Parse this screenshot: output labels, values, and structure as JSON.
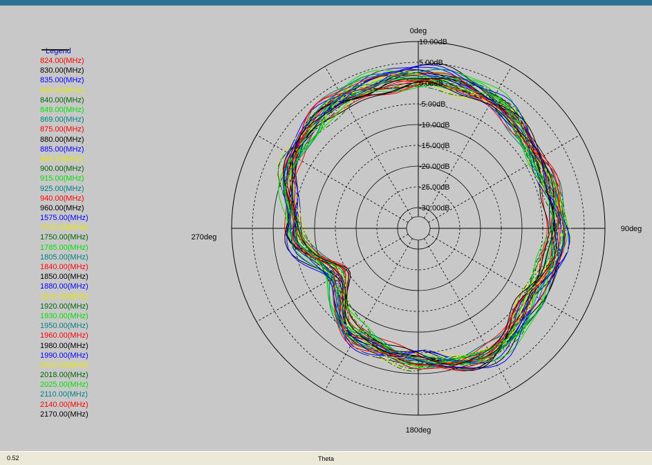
{
  "status_bar": {
    "left_value": "0.52",
    "center_label": "Theta"
  },
  "colors": {
    "background": "#c8c8c8",
    "title_bar": "#2f7394",
    "legend_title": "#0000d0"
  },
  "chart_data": {
    "type": "polar_line",
    "legend_title": "Legend",
    "angle_labels": [
      {
        "deg": 0,
        "label": "0deg"
      },
      {
        "deg": 90,
        "label": "90deg"
      },
      {
        "deg": 180,
        "label": "180deg"
      },
      {
        "deg": 270,
        "label": "270deg"
      }
    ],
    "radial_range_db": [
      -35,
      10
    ],
    "radial_ticks": [
      {
        "db": 10,
        "label": "10.00dB"
      },
      {
        "db": 5,
        "label": "5.00dB"
      },
      {
        "db": 0,
        "label": "0.00dB"
      },
      {
        "db": -5,
        "label": "-5.00dB"
      },
      {
        "db": -10,
        "label": "-10.00dB"
      },
      {
        "db": -15,
        "label": "-15.00dB"
      },
      {
        "db": -20,
        "label": "-20.00dB"
      },
      {
        "db": -25,
        "label": "-25.00dB"
      },
      {
        "db": -30,
        "label": "-30.00dB"
      }
    ],
    "series": [
      {
        "name": "824.00(MHz)",
        "color": "#ff0000",
        "dash": "solid"
      },
      {
        "name": "830.00(MHz)",
        "color": "#000000",
        "dash": "solid"
      },
      {
        "name": "835.00(MHz)",
        "color": "#0000ff",
        "dash": "solid"
      },
      {
        "name": "836.00(MHz)",
        "color": "#e6e600",
        "dash": "dashed"
      },
      {
        "name": "840.00(MHz)",
        "color": "#006400",
        "dash": "dashdot"
      },
      {
        "name": "849.00(MHz)",
        "color": "#00e000",
        "dash": "solid"
      },
      {
        "name": "869.00(MHz)",
        "color": "#008080",
        "dash": "solid"
      },
      {
        "name": "875.00(MHz)",
        "color": "#ff0000",
        "dash": "solid"
      },
      {
        "name": "880.00(MHz)",
        "color": "#000000",
        "dash": "solid"
      },
      {
        "name": "885.00(MHz)",
        "color": "#0000ff",
        "dash": "solid"
      },
      {
        "name": "894.00(MHz)",
        "color": "#e6e600",
        "dash": "dashed"
      },
      {
        "name": "900.00(MHz)",
        "color": "#006400",
        "dash": "dashdot"
      },
      {
        "name": "915.00(MHz)",
        "color": "#00e000",
        "dash": "solid"
      },
      {
        "name": "925.00(MHz)",
        "color": "#008080",
        "dash": "solid"
      },
      {
        "name": "940.00(MHz)",
        "color": "#ff0000",
        "dash": "solid"
      },
      {
        "name": "960.00(MHz)",
        "color": "#000000",
        "dash": "solid"
      },
      {
        "name": "1575.00(MHz)",
        "color": "#0000ff",
        "dash": "solid"
      },
      {
        "name": "1710.00(MHz)",
        "color": "#e6e600",
        "dash": "dashed"
      },
      {
        "name": "1750.00(MHz)",
        "color": "#006400",
        "dash": "dashdot"
      },
      {
        "name": "1785.00(MHz)",
        "color": "#00e000",
        "dash": "solid"
      },
      {
        "name": "1805.00(MHz)",
        "color": "#008080",
        "dash": "solid"
      },
      {
        "name": "1840.00(MHz)",
        "color": "#ff0000",
        "dash": "solid"
      },
      {
        "name": "1850.00(MHz)",
        "color": "#000000",
        "dash": "solid"
      },
      {
        "name": "1880.00(MHz)",
        "color": "#0000ff",
        "dash": "solid"
      },
      {
        "name": "1910.00(MHz)",
        "color": "#e6e600",
        "dash": "dashed"
      },
      {
        "name": "1920.00(MHz)",
        "color": "#006400",
        "dash": "dashdot"
      },
      {
        "name": "1930.00(MHz)",
        "color": "#00e000",
        "dash": "solid"
      },
      {
        "name": "1950.00(MHz)",
        "color": "#008080",
        "dash": "solid"
      },
      {
        "name": "1960.00(MHz)",
        "color": "#ff0000",
        "dash": "solid"
      },
      {
        "name": "1980.00(MHz)",
        "color": "#000000",
        "dash": "solid"
      },
      {
        "name": "1990.00(MHz)",
        "color": "#0000ff",
        "dash": "solid"
      },
      {
        "name": "2010.00(MHz)",
        "color": "#e6e600",
        "dash": "dashed"
      },
      {
        "name": "2018.00(MHz)",
        "color": "#006400",
        "dash": "dashdot"
      },
      {
        "name": "2025.00(MHz)",
        "color": "#00e000",
        "dash": "solid"
      },
      {
        "name": "2110.00(MHz)",
        "color": "#008080",
        "dash": "solid"
      },
      {
        "name": "2140.00(MHz)",
        "color": "#ff0000",
        "dash": "solid"
      },
      {
        "name": "2170.00(MHz)",
        "color": "#000000",
        "dash": "solid"
      }
    ],
    "base_pattern_db": [
      {
        "theta": 0,
        "db": 1.5
      },
      {
        "theta": 30,
        "db": 1
      },
      {
        "theta": 60,
        "db": -2
      },
      {
        "theta": 90,
        "db": -1
      },
      {
        "theta": 120,
        "db": -3
      },
      {
        "theta": 150,
        "db": 0
      },
      {
        "theta": 180,
        "db": -3
      },
      {
        "theta": 210,
        "db": -5
      },
      {
        "theta": 240,
        "db": -12
      },
      {
        "theta": 270,
        "db": -5
      },
      {
        "theta": 300,
        "db": 0
      },
      {
        "theta": 330,
        "db": 1.5
      }
    ]
  }
}
